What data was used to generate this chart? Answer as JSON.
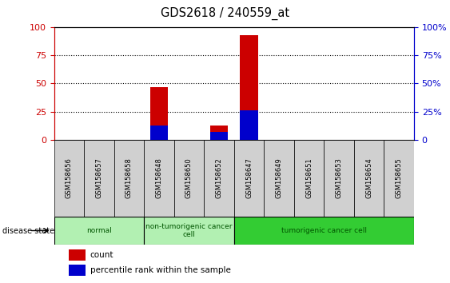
{
  "title": "GDS2618 / 240559_at",
  "samples": [
    "GSM158656",
    "GSM158657",
    "GSM158658",
    "GSM158648",
    "GSM158650",
    "GSM158652",
    "GSM158647",
    "GSM158649",
    "GSM158651",
    "GSM158653",
    "GSM158654",
    "GSM158655"
  ],
  "count_values": [
    0,
    0,
    0,
    47,
    0,
    13,
    93,
    0,
    0,
    0,
    0,
    0
  ],
  "percentile_values": [
    0,
    0,
    0,
    13,
    0,
    7,
    26,
    0,
    0,
    0,
    0,
    0
  ],
  "ylim": [
    0,
    100
  ],
  "yticks": [
    0,
    25,
    50,
    75,
    100
  ],
  "bar_color_count": "#CC0000",
  "bar_color_percentile": "#0000CC",
  "bar_width": 0.6,
  "left_yaxis_color": "#CC0000",
  "right_yaxis_color": "#0000CC",
  "plot_bg_color": "#FFFFFF",
  "tick_label_color": "#555555",
  "disease_state_label": "disease state",
  "legend_count_label": "count",
  "legend_percentile_label": "percentile rank within the sample",
  "normal_color": "#b2f0b2",
  "nontumor_color": "#b2f0b2",
  "tumor_color": "#33cc33",
  "group_text_color": "#005500",
  "xtick_bg_color": "#d0d0d0"
}
